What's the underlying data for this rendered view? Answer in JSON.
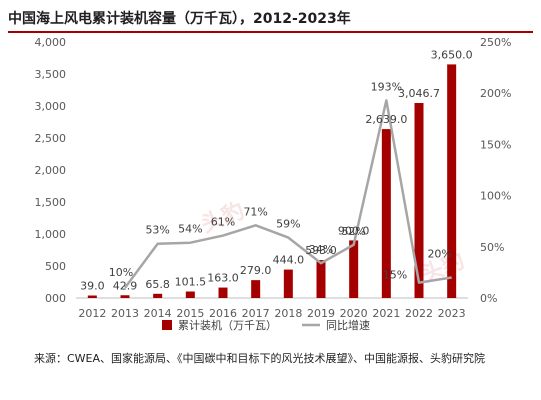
{
  "header": {
    "title": "中国海上风电累计装机容量（万千瓦），2012-2023年",
    "accent_color": "#a50000"
  },
  "source": {
    "text": "来源：CWEA、国家能源局、《中国碳中和目标下的风光技术展望》、中国能源报、头豹研究院"
  },
  "watermark": {
    "text": "头豹"
  },
  "chart_data": {
    "type": "bar",
    "title": "中国海上风电累计装机容量（万千瓦），2012-2023年",
    "categories": [
      "2012",
      "2013",
      "2014",
      "2015",
      "2016",
      "2017",
      "2018",
      "2019",
      "2020",
      "2021",
      "2022",
      "2023"
    ],
    "series": [
      {
        "name": "累计装机（万千瓦）",
        "type": "bar",
        "axis": "left",
        "color": "#a50000",
        "values": [
          39.0,
          42.9,
          65.8,
          101.5,
          163.0,
          279.0,
          444.0,
          593.0,
          900.0,
          2639.0,
          3046.7,
          3650.0
        ],
        "labels": [
          "39.0",
          "42.9",
          "65.8",
          "101.5",
          "163.0",
          "279.0",
          "444.0",
          "593.0",
          "900.0",
          "2,639.0",
          "3,046.7",
          "3,650.0"
        ]
      },
      {
        "name": "同比增速",
        "type": "line",
        "axis": "right",
        "color": "#a6a6a6",
        "values": [
          null,
          10,
          53,
          54,
          61,
          71,
          59,
          34,
          52,
          193,
          15,
          20
        ],
        "labels": [
          "",
          "10%",
          "53%",
          "54%",
          "61%",
          "71%",
          "59%",
          "34%",
          "52%",
          "193%",
          "15%",
          "20%"
        ]
      }
    ],
    "y_left": {
      "ylim": [
        0,
        4000
      ],
      "ticks": [
        0,
        500,
        1000,
        1500,
        2000,
        2500,
        3000,
        3500,
        4000
      ],
      "tick_labels": [
        "000",
        "500",
        "1,000",
        "1,500",
        "2,000",
        "2,500",
        "3,000",
        "3,500",
        "4,000"
      ]
    },
    "y_right": {
      "ylim": [
        0,
        250
      ],
      "ticks": [
        0,
        50,
        100,
        150,
        200,
        250
      ],
      "tick_labels": [
        "0%",
        "50%",
        "100%",
        "150%",
        "200%",
        "250%"
      ]
    },
    "legend": {
      "placement": "bottom-center",
      "items": [
        {
          "label": "累计装机（万千瓦）",
          "symbol": "rect",
          "color": "#a50000"
        },
        {
          "label": "同比增速",
          "symbol": "line",
          "color": "#a6a6a6"
        }
      ]
    },
    "grid": false
  }
}
